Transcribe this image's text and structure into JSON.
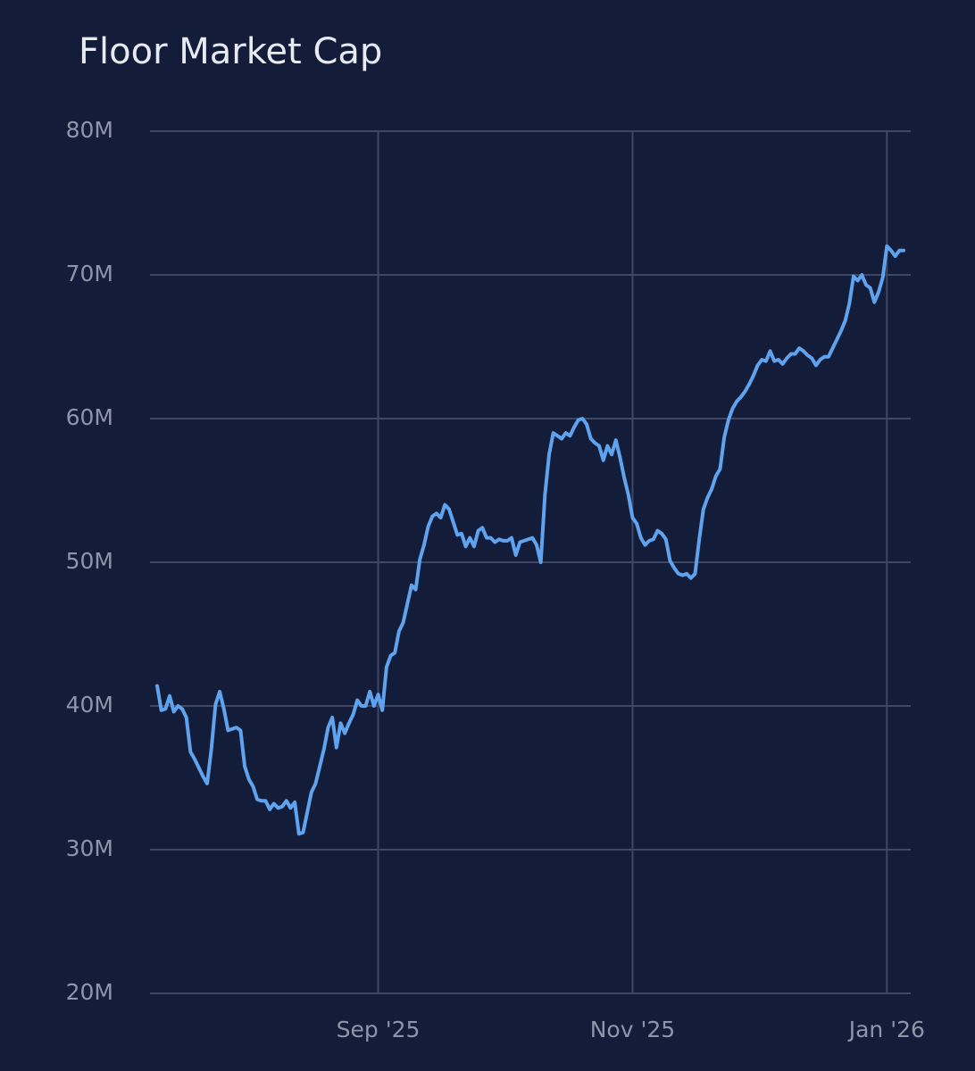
{
  "chart_data": {
    "type": "line",
    "title": "Floor Market Cap",
    "categories": [
      null,
      null,
      null,
      null,
      null,
      null,
      null,
      null,
      null,
      null,
      null,
      null,
      null,
      null,
      null,
      null,
      null,
      null,
      null,
      null,
      null,
      null,
      null,
      null,
      null,
      null,
      null,
      null,
      null,
      null,
      null,
      null,
      null,
      null,
      null,
      null,
      null,
      null,
      null,
      null,
      null,
      null,
      null,
      null,
      null,
      null,
      null,
      null,
      null,
      null,
      null,
      null,
      null,
      "Sep '25",
      null,
      null,
      null,
      null,
      null,
      null,
      null,
      null,
      null,
      null,
      null,
      null,
      null,
      null,
      null,
      null,
      null,
      null,
      null,
      null,
      null,
      null,
      null,
      null,
      null,
      null,
      null,
      null,
      null,
      null,
      null,
      null,
      null,
      null,
      null,
      null,
      null,
      null,
      null,
      null,
      null,
      null,
      null,
      null,
      null,
      null,
      null,
      null,
      null,
      null,
      null,
      null,
      null,
      null,
      null,
      null,
      null,
      null,
      null,
      null,
      "Nov '25",
      null,
      null,
      null,
      null,
      null,
      null,
      null,
      null,
      null,
      null,
      null,
      null,
      null,
      null,
      null,
      null,
      null,
      null,
      null,
      null,
      null,
      null,
      null,
      null,
      null,
      null,
      null,
      null,
      null,
      null,
      null,
      null,
      null,
      null,
      null,
      null,
      null,
      null,
      null,
      null,
      null,
      null,
      null,
      null,
      null,
      null,
      null,
      null,
      null,
      null,
      null,
      null,
      null,
      null,
      null,
      null,
      null,
      null,
      null,
      null,
      "Jan '26",
      null,
      null,
      null,
      null
    ],
    "series": [
      {
        "name": "Floor Market Cap",
        "color": "#5fa2ee",
        "values": [
          41.4,
          39.7,
          39.8,
          40.7,
          39.6,
          40.0,
          39.8,
          39.2,
          36.8,
          36.3,
          35.7,
          35.1,
          34.6,
          37.0,
          40.1,
          41.0,
          39.8,
          38.3,
          38.4,
          38.5,
          38.3,
          35.8,
          34.9,
          34.4,
          33.5,
          33.4,
          33.4,
          32.8,
          33.2,
          32.9,
          33.0,
          33.4,
          32.9,
          33.3,
          31.1,
          31.2,
          32.6,
          34.0,
          34.6,
          35.8,
          37.0,
          38.5,
          39.2,
          37.1,
          38.8,
          38.1,
          38.8,
          39.4,
          40.4,
          40.0,
          40.0,
          41.0,
          40.0,
          40.8,
          39.7,
          42.7,
          43.5,
          43.7,
          45.2,
          45.8,
          47.1,
          48.4,
          48.1,
          50.2,
          51.2,
          52.5,
          53.2,
          53.4,
          53.1,
          54.0,
          53.7,
          52.8,
          51.9,
          52.0,
          51.1,
          51.7,
          51.1,
          52.2,
          52.4,
          51.7,
          51.7,
          51.4,
          51.6,
          51.5,
          51.5,
          51.7,
          50.5,
          51.4,
          51.5,
          51.6,
          51.7,
          51.2,
          50.0,
          54.7,
          57.5,
          59.0,
          58.8,
          58.6,
          59.0,
          58.8,
          59.4,
          59.9,
          60.0,
          59.6,
          58.6,
          58.3,
          58.1,
          57.1,
          58.1,
          57.5,
          58.5,
          57.3,
          55.9,
          54.7,
          53.1,
          52.7,
          51.7,
          51.2,
          51.5,
          51.6,
          52.2,
          52.0,
          51.6,
          50.1,
          49.6,
          49.2,
          49.1,
          49.2,
          48.9,
          49.2,
          51.6,
          53.7,
          54.5,
          55.1,
          56.0,
          56.5,
          58.7,
          59.9,
          60.7,
          61.2,
          61.5,
          61.9,
          62.4,
          63.0,
          63.7,
          64.1,
          64.0,
          64.7,
          64.0,
          64.1,
          63.8,
          64.2,
          64.5,
          64.5,
          64.9,
          64.7,
          64.4,
          64.2,
          63.7,
          64.1,
          64.3,
          64.3,
          64.9,
          65.5,
          66.1,
          66.8,
          68.0,
          69.9,
          69.6,
          70.0,
          69.3,
          69.1,
          68.1,
          68.8,
          69.8,
          72.0,
          71.7,
          71.3,
          71.7,
          71.7
        ]
      }
    ],
    "ylim": [
      20,
      80
    ],
    "yticks": [
      {
        "value": 20,
        "label": "20M"
      },
      {
        "value": 30,
        "label": "30M"
      },
      {
        "value": 40,
        "label": "40M"
      },
      {
        "value": 50,
        "label": "50M"
      },
      {
        "value": 60,
        "label": "60M"
      },
      {
        "value": 70,
        "label": "70M"
      },
      {
        "value": 80,
        "label": "80M"
      }
    ],
    "grid": true
  }
}
